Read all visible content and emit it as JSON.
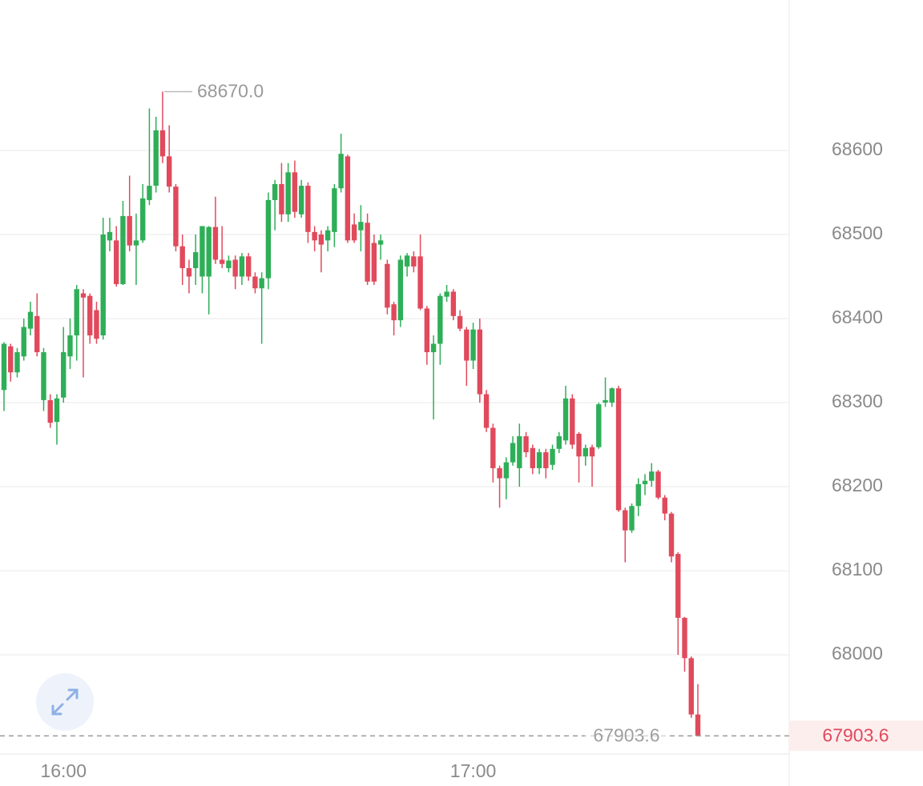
{
  "chart_data": {
    "type": "candlestick",
    "up_color": "#2fae58",
    "down_color": "#e04a5c",
    "ylim": [
      67882,
      68779
    ],
    "yticks": [
      68000,
      68100,
      68200,
      68300,
      68400,
      68500,
      68600
    ],
    "grid": true,
    "categories": [
      null,
      null,
      null,
      null,
      null,
      null,
      null,
      null,
      null,
      "16:00",
      null,
      null,
      null,
      null,
      null,
      null,
      null,
      null,
      null,
      null,
      null,
      null,
      null,
      null,
      null,
      null,
      null,
      null,
      null,
      null,
      null,
      null,
      null,
      null,
      null,
      null,
      null,
      null,
      null,
      null,
      null,
      null,
      null,
      null,
      null,
      null,
      null,
      null,
      null,
      null,
      null,
      null,
      null,
      null,
      null,
      null,
      null,
      null,
      null,
      null,
      null,
      null,
      null,
      null,
      null,
      null,
      null,
      null,
      null,
      null,
      null,
      "17:00",
      null,
      null,
      null,
      null,
      null,
      null,
      null,
      null,
      null,
      null,
      null,
      null,
      null,
      null,
      null,
      null,
      null,
      null,
      null,
      null,
      null,
      null,
      null,
      null,
      null,
      null,
      null,
      null,
      null,
      null,
      null,
      null,
      null,
      null
    ],
    "candles": [
      [
        68315,
        68372,
        68290,
        68370
      ],
      [
        68367,
        68370,
        68325,
        68336
      ],
      [
        68336,
        68365,
        68330,
        68360
      ],
      [
        68355,
        68400,
        68350,
        68390
      ],
      [
        68388,
        68420,
        68380,
        68408
      ],
      [
        68403,
        68430,
        68355,
        68360
      ],
      [
        68303,
        68365,
        68290,
        68360
      ],
      [
        68303,
        68310,
        68270,
        68276
      ],
      [
        68277,
        68310,
        68250,
        68305
      ],
      [
        68306,
        68390,
        68300,
        68360
      ],
      [
        68355,
        68400,
        68340,
        68380
      ],
      [
        68380,
        68440,
        68350,
        68435
      ],
      [
        68430,
        68435,
        68330,
        68425
      ],
      [
        68427,
        68430,
        68370,
        68380
      ],
      [
        68410,
        68420,
        68370,
        68376
      ],
      [
        68380,
        68520,
        68375,
        68500
      ],
      [
        68493,
        68520,
        68480,
        68503
      ],
      [
        68493,
        68510,
        68438,
        68441
      ],
      [
        68441,
        68540,
        68440,
        68522
      ],
      [
        68522,
        68570,
        68480,
        68487
      ],
      [
        68487,
        68525,
        68440,
        68493
      ],
      [
        68493,
        68560,
        68490,
        68543
      ],
      [
        68541,
        68650,
        68535,
        68558
      ],
      [
        68558,
        68640,
        68550,
        68624
      ],
      [
        68624,
        68670,
        68585,
        68593
      ],
      [
        68593,
        68630,
        68550,
        68557
      ],
      [
        68557,
        68560,
        68480,
        68486
      ],
      [
        68486,
        68500,
        68440,
        68460
      ],
      [
        68460,
        68470,
        68430,
        68450
      ],
      [
        68460,
        68500,
        68440,
        68479
      ],
      [
        68450,
        68510,
        68430,
        68510
      ],
      [
        68450,
        68510,
        68405,
        68509
      ],
      [
        68509,
        68545,
        68465,
        68470
      ],
      [
        68470,
        68510,
        68460,
        68465
      ],
      [
        68460,
        68475,
        68455,
        68469
      ],
      [
        68470,
        68475,
        68435,
        68450
      ],
      [
        68450,
        68478,
        68440,
        68474
      ],
      [
        68474,
        68478,
        68445,
        68450
      ],
      [
        68450,
        68455,
        68430,
        68436
      ],
      [
        68436,
        68455,
        68370,
        68448
      ],
      [
        68448,
        68550,
        68435,
        68541
      ],
      [
        68541,
        68565,
        68505,
        68560
      ],
      [
        68560,
        68585,
        68515,
        68524
      ],
      [
        68524,
        68585,
        68515,
        68574
      ],
      [
        68574,
        68588,
        68520,
        68527
      ],
      [
        68524,
        68565,
        68520,
        68558
      ],
      [
        68558,
        68562,
        68490,
        68503
      ],
      [
        68503,
        68510,
        68480,
        68493
      ],
      [
        68500,
        68505,
        68455,
        68488
      ],
      [
        68493,
        68510,
        68480,
        68505
      ],
      [
        68503,
        68560,
        68485,
        68555
      ],
      [
        68555,
        68620,
        68550,
        68596
      ],
      [
        68593,
        68595,
        68490,
        68493
      ],
      [
        68512,
        68525,
        68490,
        68493
      ],
      [
        68505,
        68535,
        68480,
        68515
      ],
      [
        68514,
        68525,
        68440,
        68444
      ],
      [
        68490,
        68500,
        68440,
        68444
      ],
      [
        68488,
        68500,
        68470,
        68493
      ],
      [
        68465,
        68470,
        68405,
        68413
      ],
      [
        68417,
        68420,
        68380,
        68398
      ],
      [
        68398,
        68475,
        68390,
        68470
      ],
      [
        68462,
        68478,
        68450,
        68475
      ],
      [
        68474,
        68480,
        68455,
        68462
      ],
      [
        68474,
        68500,
        68410,
        68412
      ],
      [
        68412,
        68415,
        68345,
        68360
      ],
      [
        68360,
        68380,
        68280,
        68370
      ],
      [
        68370,
        68430,
        68345,
        68427
      ],
      [
        68426,
        68440,
        68420,
        68432
      ],
      [
        68432,
        68435,
        68398,
        68403
      ],
      [
        68403,
        68410,
        68385,
        68388
      ],
      [
        68387,
        68390,
        68320,
        68350
      ],
      [
        68350,
        68395,
        68340,
        68387
      ],
      [
        68387,
        68400,
        68300,
        68310
      ],
      [
        68310,
        68315,
        68265,
        68270
      ],
      [
        68270,
        68275,
        68205,
        68222
      ],
      [
        68222,
        68225,
        68175,
        68210
      ],
      [
        68210,
        68235,
        68185,
        68229
      ],
      [
        68229,
        68260,
        68225,
        68252
      ],
      [
        68222,
        68275,
        68200,
        68260
      ],
      [
        68260,
        68265,
        68235,
        68241
      ],
      [
        68246,
        68250,
        68215,
        68222
      ],
      [
        68222,
        68245,
        68215,
        68241
      ],
      [
        68241,
        68245,
        68210,
        68222
      ],
      [
        68226,
        68250,
        68220,
        68245
      ],
      [
        68245,
        68265,
        68240,
        68260
      ],
      [
        68255,
        68320,
        68250,
        68305
      ],
      [
        68305,
        68310,
        68245,
        68250
      ],
      [
        68263,
        68265,
        68205,
        68236
      ],
      [
        68236,
        68250,
        68225,
        68246
      ],
      [
        68247,
        68250,
        68200,
        68236
      ],
      [
        68247,
        68300,
        68245,
        68298
      ],
      [
        68300,
        68330,
        68295,
        68303
      ],
      [
        68300,
        68318,
        68295,
        68317
      ],
      [
        68317,
        68320,
        68170,
        68172
      ],
      [
        68172,
        68175,
        68110,
        68148
      ],
      [
        68148,
        68180,
        68145,
        68177
      ],
      [
        68177,
        68210,
        68165,
        68203
      ],
      [
        68203,
        68215,
        68190,
        68207
      ],
      [
        68207,
        68228,
        68200,
        68218
      ],
      [
        68218,
        68220,
        68185,
        68187
      ],
      [
        68187,
        68190,
        68160,
        68168
      ],
      [
        68168,
        68170,
        68110,
        68117
      ],
      [
        68120,
        68122,
        68000,
        68044
      ],
      [
        68044,
        68045,
        67980,
        67996
      ],
      [
        67996,
        67998,
        67925,
        67929
      ],
      [
        67929,
        67965,
        67903.6,
        67903.6
      ]
    ],
    "max_marker": {
      "value": 68670,
      "label": "68670.0"
    },
    "last_price": 67903.6
  }
}
